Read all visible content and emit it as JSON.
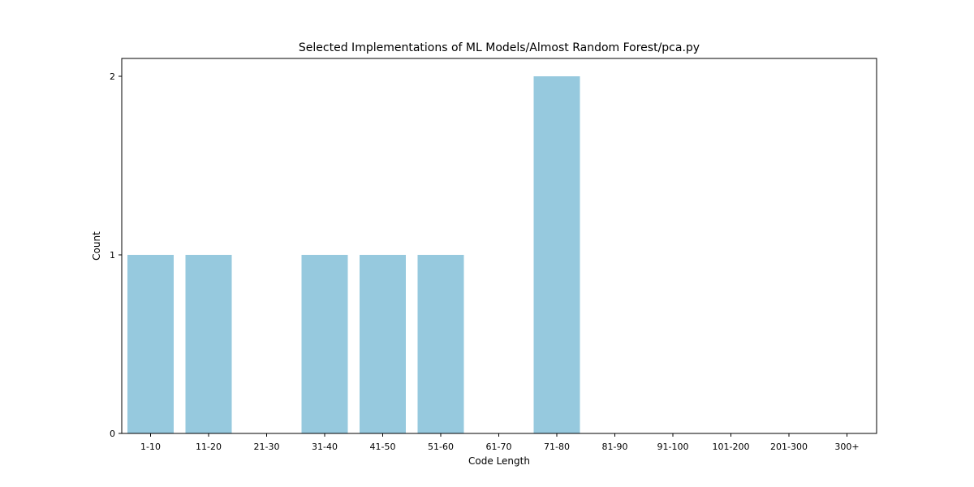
{
  "chart_data": {
    "type": "bar",
    "title": "Selected Implementations of ML Models/Almost Random Forest/pca.py",
    "xlabel": "Code Length",
    "ylabel": "Count",
    "categories": [
      "1-10",
      "11-20",
      "21-30",
      "31-40",
      "41-50",
      "51-60",
      "61-70",
      "71-80",
      "81-90",
      "91-100",
      "101-200",
      "201-300",
      "300+"
    ],
    "values": [
      1,
      1,
      0,
      1,
      1,
      1,
      0,
      2,
      0,
      0,
      0,
      0,
      0
    ],
    "ylim": [
      0,
      2.1
    ],
    "yticks": [
      0,
      1,
      2
    ],
    "grid": false,
    "colors": {
      "bar": "#96c9de",
      "axis": "#000000",
      "background": "#ffffff"
    }
  }
}
